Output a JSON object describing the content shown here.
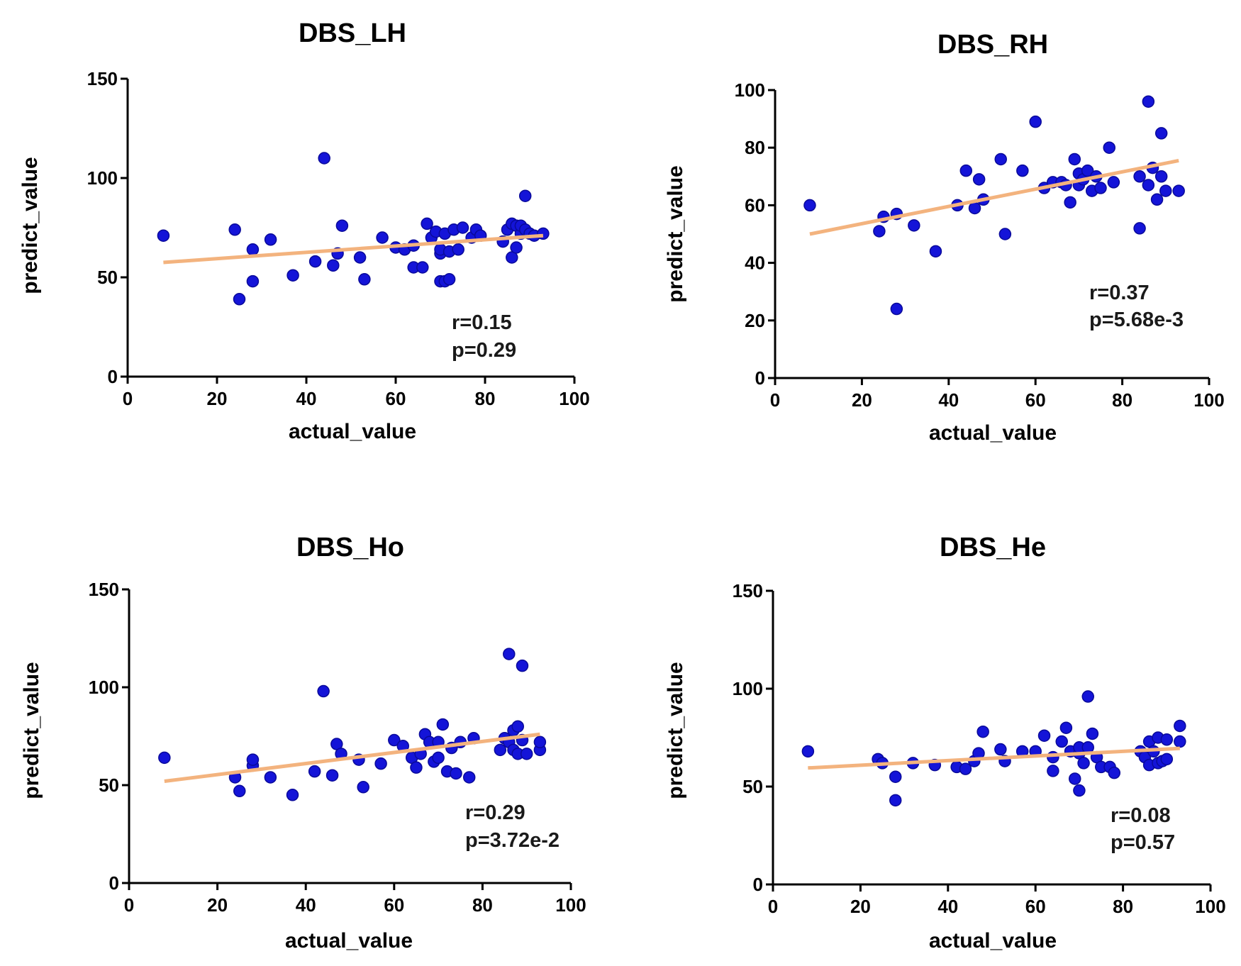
{
  "chart_data": [
    {
      "type": "scatter",
      "title": "DBS_LH",
      "xlabel": "actual_value",
      "ylabel": "predict_value",
      "xlim": [
        0,
        100
      ],
      "ylim": [
        0,
        150
      ],
      "xticks": [
        0,
        20,
        40,
        60,
        80,
        100
      ],
      "yticks": [
        0,
        50,
        100,
        150
      ],
      "fit_line": {
        "x": [
          8,
          93
        ],
        "y": [
          57.5,
          71
        ]
      },
      "stats": [
        "r=0.15",
        "p=0.29"
      ],
      "x": [
        8,
        24,
        25,
        28,
        28,
        32,
        37,
        42,
        44,
        46,
        47,
        48,
        52,
        53,
        57,
        60,
        62,
        64,
        64,
        66,
        67,
        68,
        69,
        70,
        70,
        70,
        71,
        71,
        72,
        72,
        73,
        74,
        75,
        77,
        78,
        79,
        84,
        85,
        86,
        86,
        87,
        87,
        88,
        88,
        89,
        89,
        90,
        91,
        93
      ],
      "y": [
        71,
        74,
        39,
        48,
        64,
        69,
        51,
        58,
        110,
        56,
        62,
        76,
        60,
        49,
        70,
        65,
        64,
        55,
        66,
        55,
        77,
        70,
        73,
        48,
        62,
        64,
        72,
        48,
        63,
        49,
        74,
        64,
        75,
        70,
        74,
        71,
        68,
        74,
        77,
        60,
        65,
        76,
        72,
        76,
        91,
        74,
        72,
        71,
        72
      ]
    },
    {
      "type": "scatter",
      "title": "DBS_RH",
      "xlabel": "actual_value",
      "ylabel": "predict_value",
      "xlim": [
        0,
        100
      ],
      "ylim": [
        0,
        100
      ],
      "xticks": [
        0,
        20,
        40,
        60,
        80,
        100
      ],
      "yticks": [
        0,
        20,
        40,
        60,
        80,
        100
      ],
      "fit_line": {
        "x": [
          8,
          93
        ],
        "y": [
          50,
          75.5
        ]
      },
      "stats": [
        "r=0.37",
        "p=5.68e-3"
      ],
      "x": [
        8,
        24,
        25,
        28,
        28,
        32,
        37,
        42,
        44,
        46,
        47,
        48,
        52,
        53,
        57,
        60,
        62,
        64,
        66,
        67,
        68,
        69,
        70,
        70,
        71,
        72,
        73,
        74,
        75,
        77,
        78,
        84,
        84,
        86,
        86,
        87,
        88,
        89,
        89,
        90,
        93
      ],
      "y": [
        60,
        51,
        56,
        24,
        57,
        53,
        44,
        60,
        72,
        59,
        69,
        62,
        76,
        50,
        72,
        89,
        66,
        68,
        68,
        67,
        61,
        76,
        71,
        67,
        69,
        72,
        65,
        70,
        66,
        80,
        68,
        70,
        52,
        67,
        96,
        73,
        62,
        85,
        70,
        65,
        65
      ]
    },
    {
      "type": "scatter",
      "title": "DBS_Ho",
      "xlabel": "actual_value",
      "ylabel": "predict_value",
      "xlim": [
        0,
        100
      ],
      "ylim": [
        0,
        150
      ],
      "xticks": [
        0,
        20,
        40,
        60,
        80,
        100
      ],
      "yticks": [
        0,
        50,
        100,
        150
      ],
      "fit_line": {
        "x": [
          8,
          93
        ],
        "y": [
          52,
          76
        ]
      },
      "stats": [
        "r=0.29",
        "p=3.72e-2"
      ],
      "x": [
        8,
        24,
        25,
        28,
        28,
        32,
        37,
        42,
        44,
        46,
        47,
        48,
        52,
        53,
        57,
        60,
        62,
        64,
        65,
        66,
        67,
        68,
        69,
        70,
        70,
        71,
        72,
        73,
        74,
        75,
        77,
        78,
        84,
        85,
        86,
        86,
        87,
        87,
        88,
        88,
        89,
        89,
        90,
        93,
        93
      ],
      "y": [
        64,
        54,
        47,
        60,
        63,
        54,
        45,
        57,
        98,
        55,
        71,
        66,
        63,
        49,
        61,
        73,
        70,
        64,
        59,
        66,
        76,
        72,
        62,
        64,
        72,
        81,
        57,
        69,
        56,
        72,
        54,
        74,
        68,
        74,
        117,
        72,
        78,
        68,
        80,
        66,
        111,
        73,
        66,
        68,
        72
      ]
    },
    {
      "type": "scatter",
      "title": "DBS_He",
      "xlabel": "actual_value",
      "ylabel": "predict_value",
      "xlim": [
        0,
        100
      ],
      "ylim": [
        0,
        150
      ],
      "xticks": [
        0,
        20,
        40,
        60,
        80,
        100
      ],
      "yticks": [
        0,
        50,
        100,
        150
      ],
      "fit_line": {
        "x": [
          8,
          93
        ],
        "y": [
          59.5,
          69.5
        ]
      },
      "stats": [
        "r=0.08",
        "p=0.57"
      ],
      "x": [
        8,
        24,
        25,
        28,
        28,
        32,
        37,
        42,
        44,
        46,
        47,
        48,
        52,
        53,
        57,
        60,
        62,
        64,
        64,
        66,
        67,
        68,
        69,
        70,
        70,
        70,
        71,
        72,
        72,
        73,
        74,
        75,
        77,
        78,
        84,
        85,
        86,
        86,
        87,
        88,
        88,
        89,
        90,
        90,
        93,
        93
      ],
      "y": [
        68,
        64,
        62,
        55,
        43,
        62,
        61,
        60,
        59,
        63,
        67,
        78,
        69,
        63,
        68,
        68,
        76,
        65,
        58,
        73,
        80,
        68,
        54,
        67,
        48,
        70,
        62,
        96,
        70,
        77,
        65,
        60,
        60,
        57,
        68,
        65,
        61,
        73,
        68,
        62,
        75,
        63,
        74,
        64,
        81,
        73
      ]
    }
  ]
}
